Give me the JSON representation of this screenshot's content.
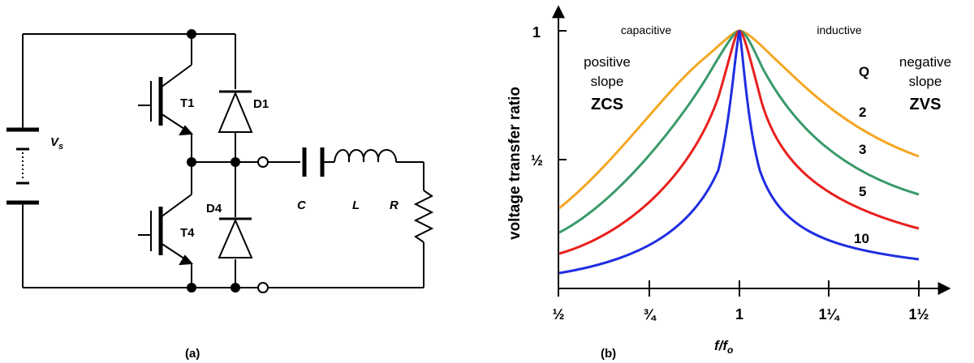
{
  "circuit": {
    "labels": {
      "source": "V",
      "source_sub": "s",
      "t1": "T1",
      "t4": "T4",
      "d1": "D1",
      "d4": "D4",
      "cap": "C",
      "ind": "L",
      "res": "R"
    },
    "caption": "(a)"
  },
  "plot": {
    "caption": "(b)",
    "ylabel": "voltage transfer ratio",
    "xlabel_main": "f/f",
    "xlabel_sub": "o",
    "y_ticks": [
      "1",
      "½"
    ],
    "x_ticks": [
      "½",
      "¾",
      "1",
      "1¼",
      "1½"
    ],
    "region_left": "capacitive",
    "region_right": "inductive",
    "left_note": [
      "positive",
      "slope"
    ],
    "left_mode": "ZCS",
    "right_note": [
      "negative",
      "slope"
    ],
    "right_mode": "ZVS",
    "q_title": "Q",
    "colors": {
      "Q2": "#f5a623",
      "Q3": "#3a9a6a",
      "Q5": "#e8201e",
      "Q10": "#1f2ee0"
    }
  },
  "chart_data": {
    "type": "line",
    "xlabel": "f/fo",
    "ylabel": "voltage transfer ratio",
    "x_ticks": [
      "½",
      "¾",
      "1",
      "1¼",
      "1½"
    ],
    "y_ticks": [
      "½",
      "1"
    ],
    "xlim": [
      0.5,
      1.5
    ],
    "series": [
      {
        "name": "2",
        "Q": 2,
        "color": "#f5a623",
        "x": [
          0.5,
          0.6,
          0.7,
          0.8,
          0.9,
          1.0,
          1.1,
          1.2,
          1.3,
          1.4,
          1.5
        ],
        "y": [
          0.3,
          0.38,
          0.5,
          0.7,
          0.92,
          1.0,
          0.93,
          0.78,
          0.63,
          0.52,
          0.44
        ]
      },
      {
        "name": "3",
        "Q": 3,
        "color": "#3a9a6a",
        "x": [
          0.5,
          0.6,
          0.7,
          0.8,
          0.9,
          1.0,
          1.1,
          1.2,
          1.3,
          1.4,
          1.5
        ],
        "y": [
          0.21,
          0.28,
          0.38,
          0.55,
          0.85,
          1.0,
          0.86,
          0.64,
          0.49,
          0.39,
          0.33
        ]
      },
      {
        "name": "5",
        "Q": 5,
        "color": "#e8201e",
        "x": [
          0.5,
          0.6,
          0.7,
          0.8,
          0.9,
          1.0,
          1.1,
          1.2,
          1.3,
          1.4,
          1.5
        ],
        "y": [
          0.13,
          0.18,
          0.25,
          0.38,
          0.72,
          1.0,
          0.74,
          0.46,
          0.33,
          0.26,
          0.22
        ]
      },
      {
        "name": "10",
        "Q": 10,
        "color": "#1f2ee0",
        "x": [
          0.5,
          0.6,
          0.7,
          0.8,
          0.9,
          1.0,
          1.1,
          1.2,
          1.3,
          1.4,
          1.5
        ],
        "y": [
          0.06,
          0.09,
          0.13,
          0.21,
          0.45,
          1.0,
          0.52,
          0.26,
          0.17,
          0.13,
          0.11
        ]
      }
    ]
  }
}
